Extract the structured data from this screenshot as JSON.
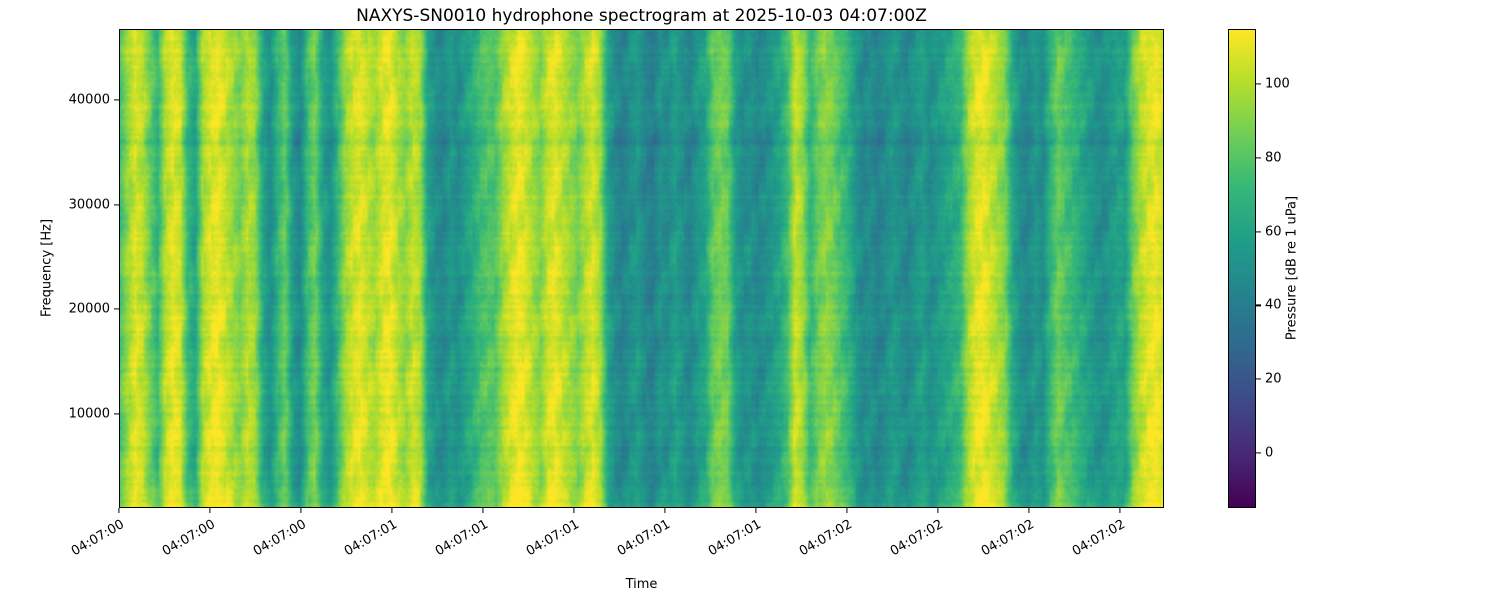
{
  "chart_data": {
    "type": "heatmap",
    "title": "NAXYS-SN0010 hydrophone spectrogram at 2025-10-03 04:07:00Z",
    "xlabel": "Time",
    "ylabel": "Frequency [Hz]",
    "x_tick_labels": [
      "04:07:00",
      "04:07:00",
      "04:07:00",
      "04:07:01",
      "04:07:01",
      "04:07:01",
      "04:07:01",
      "04:07:01",
      "04:07:02",
      "04:07:02",
      "04:07:02",
      "04:07:02"
    ],
    "x_tick_times_s": [
      0,
      0.25,
      0.5,
      0.75,
      1.0,
      1.25,
      1.5,
      1.75,
      2.0,
      2.25,
      2.5,
      2.75
    ],
    "time_range_s": [
      0,
      2.87
    ],
    "y_ticks": [
      10000,
      20000,
      30000,
      40000
    ],
    "freq_range_hz": [
      1000,
      46800
    ],
    "grid": false,
    "colorbar": {
      "label": "Pressure [dB re 1 uPa]",
      "ticks": [
        0,
        20,
        40,
        60,
        80,
        100
      ],
      "vmin": -15,
      "vmax": 115,
      "colormap": "viridis",
      "viridis_stops": [
        "#440154",
        "#482878",
        "#3e4a89",
        "#31688e",
        "#26828e",
        "#1f9e89",
        "#35b779",
        "#6ece58",
        "#b5de2b",
        "#fde725"
      ]
    },
    "column_levels_db": [
      78,
      95,
      108,
      102,
      85,
      70,
      100,
      110,
      106,
      72,
      60,
      98,
      108,
      112,
      104,
      96,
      88,
      100,
      95,
      62,
      48,
      70,
      85,
      55,
      45,
      75,
      88,
      60,
      50,
      72,
      95,
      105,
      110,
      102,
      96,
      108,
      112,
      100,
      92,
      104,
      98,
      60,
      50,
      45,
      55,
      48,
      58,
      65,
      75,
      80,
      78,
      95,
      105,
      112,
      108,
      98,
      90,
      105,
      110,
      102,
      95,
      88,
      100,
      108,
      96,
      60,
      48,
      42,
      50,
      55,
      45,
      40,
      52,
      48,
      58,
      50,
      44,
      55,
      60,
      82,
      88,
      85,
      58,
      48,
      52,
      45,
      50,
      55,
      62,
      75,
      105,
      95,
      70,
      85,
      92,
      88,
      78,
      70,
      55,
      45,
      50,
      42,
      48,
      55,
      50,
      44,
      52,
      58,
      48,
      55,
      60,
      65,
      70,
      95,
      108,
      112,
      105,
      98,
      90,
      62,
      50,
      45,
      55,
      48,
      70,
      85,
      78,
      72,
      65,
      58,
      52,
      48,
      55,
      60,
      58,
      85,
      100,
      108,
      112,
      106
    ],
    "row_offsets_db": [
      8,
      5,
      3,
      2,
      1,
      0,
      1,
      2,
      1,
      0,
      1,
      2,
      3,
      2,
      1,
      0,
      -1,
      0,
      1,
      2,
      0,
      -1,
      -2,
      0,
      1,
      2,
      1,
      0,
      -1,
      0,
      1,
      0,
      -1,
      -2,
      -1,
      0,
      -8,
      -4,
      0,
      1,
      2,
      1,
      0,
      -1,
      0,
      1,
      0,
      -2
    ],
    "texture": {
      "noise_db": 7,
      "row_streak_db": 6,
      "blob_db": 6
    }
  }
}
